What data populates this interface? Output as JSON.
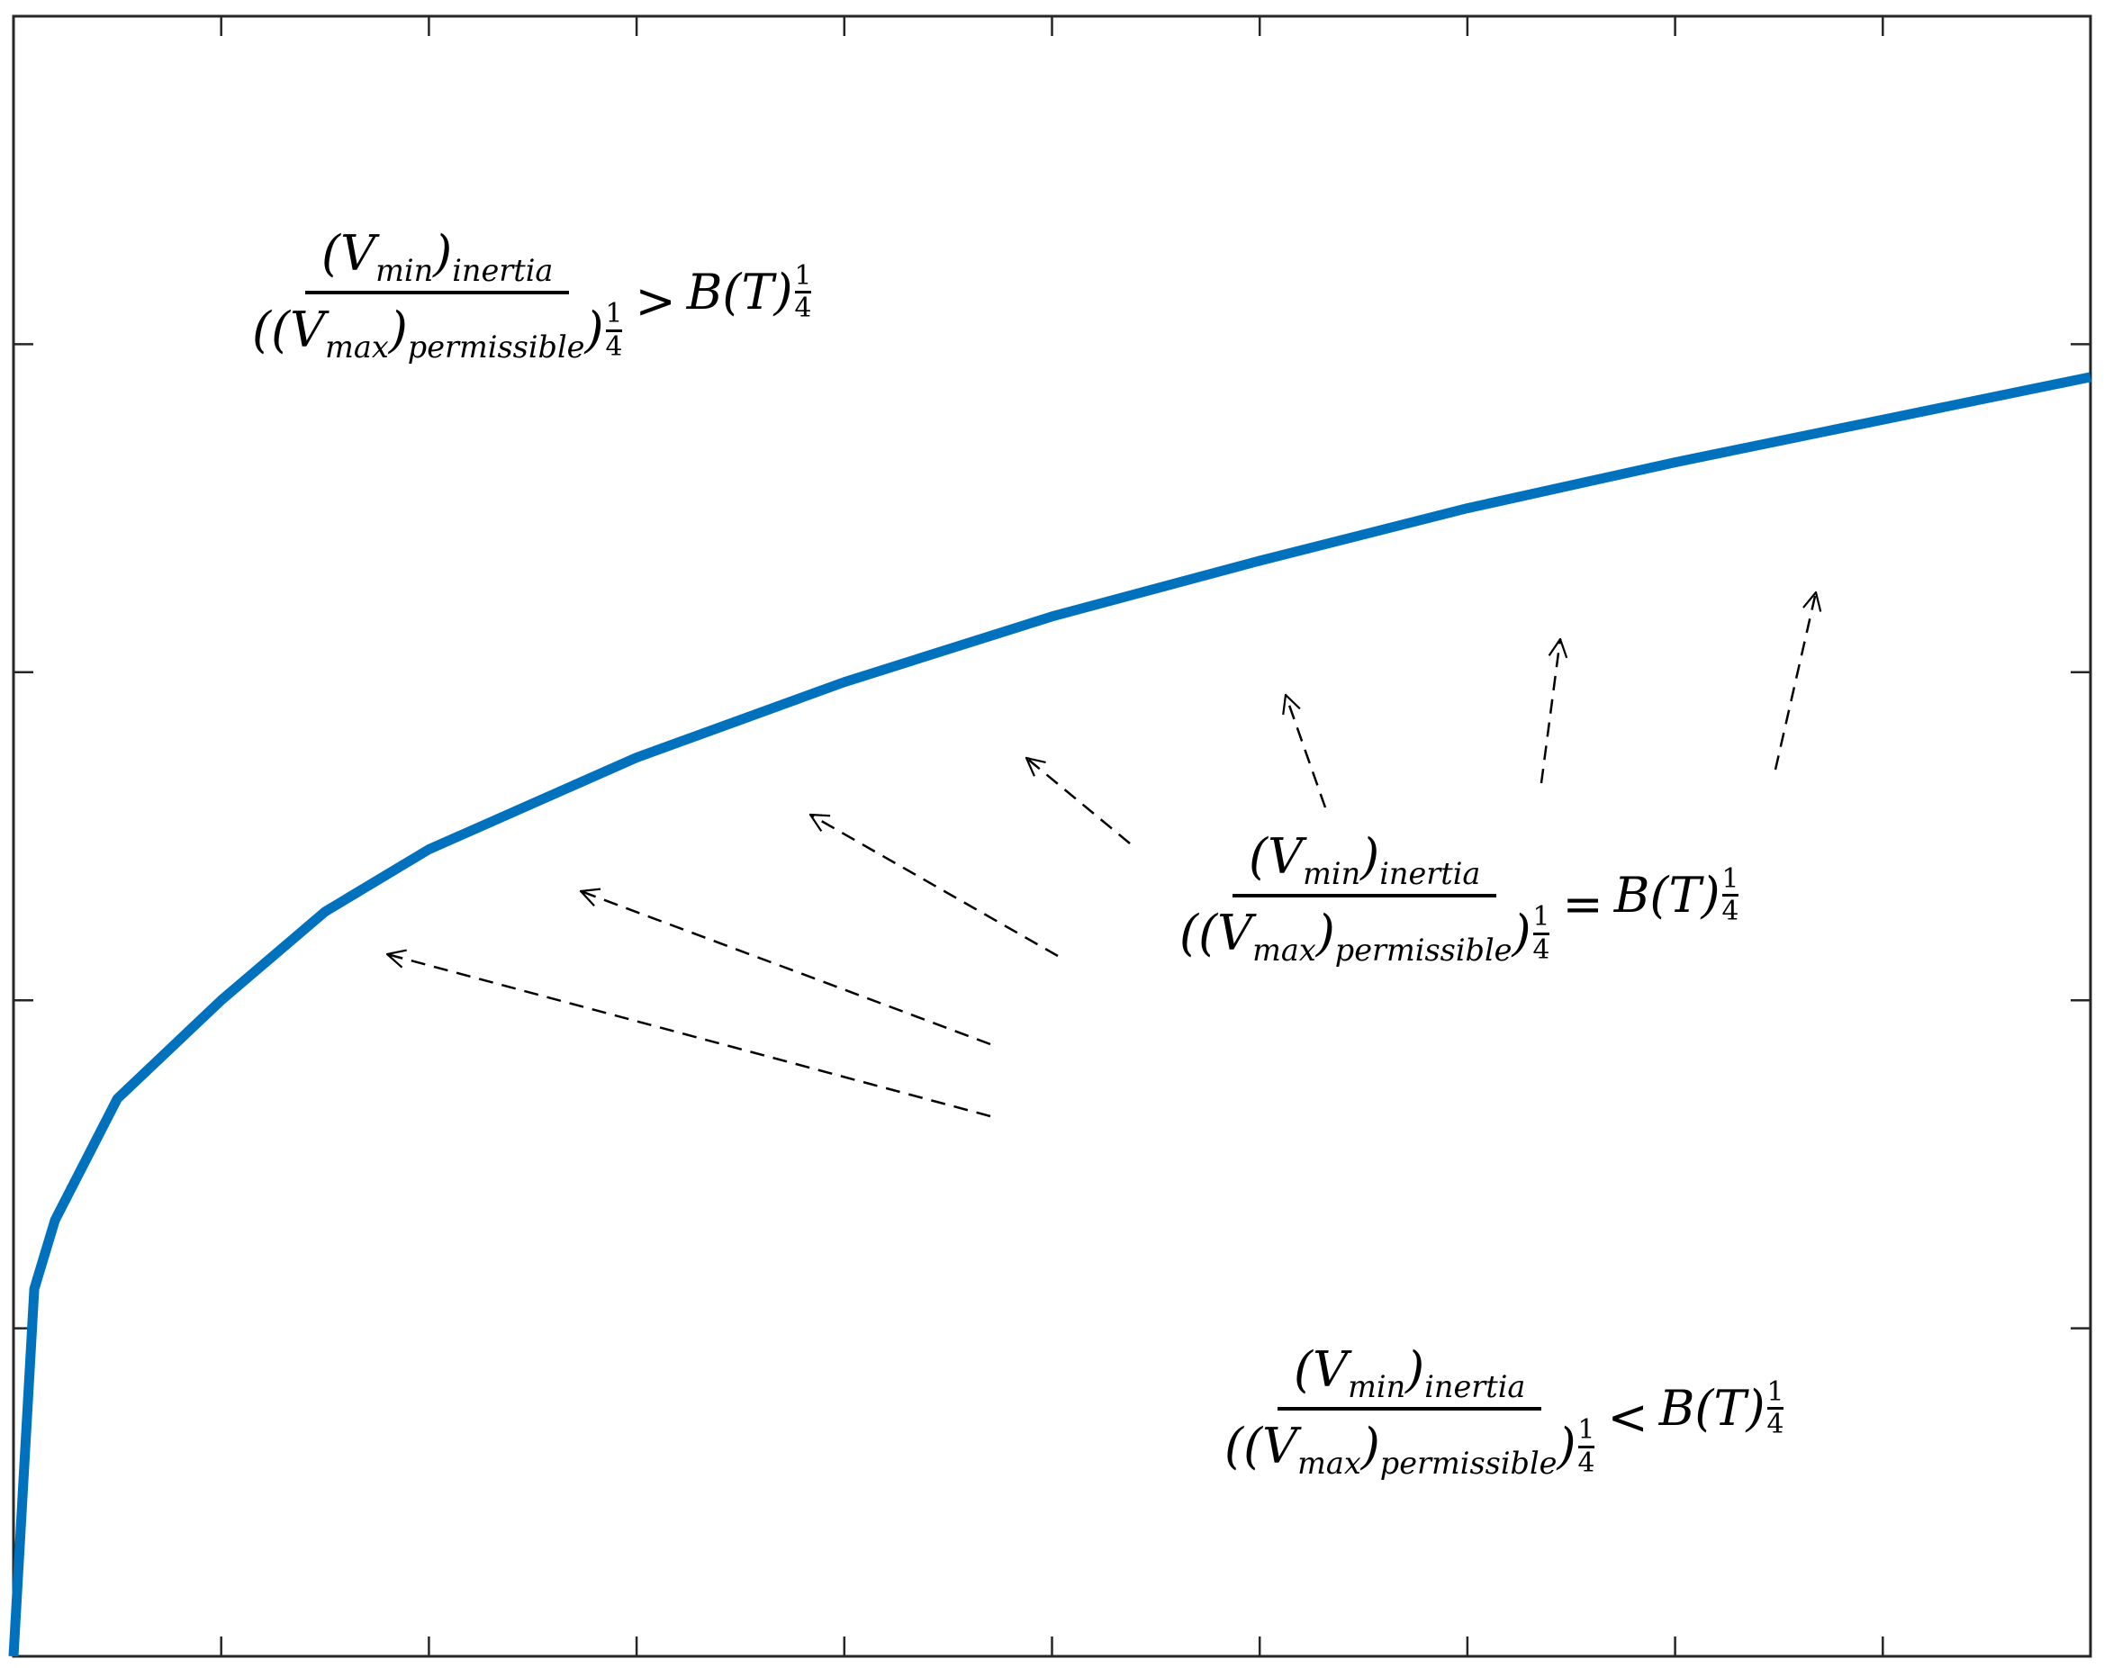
{
  "chart_data": {
    "type": "line",
    "title": "",
    "xlabel": "",
    "ylabel": "",
    "xticks": [
      "",
      "",
      "",
      "",
      "",
      "",
      "",
      "",
      "",
      ""
    ],
    "yticks": [
      "",
      "",
      "",
      "",
      ""
    ],
    "xlim": [
      0,
      10
    ],
    "ylim": [
      0,
      5
    ],
    "grid": false,
    "series": [
      {
        "color": "#0072BD",
        "x": [
          0.0,
          0.1,
          0.2,
          0.5,
          1.0,
          1.5,
          2.0,
          3.0,
          4.0,
          5.0,
          6.0,
          7.0,
          8.0,
          9.0,
          10.0
        ],
        "y": [
          0.0,
          1.12,
          1.33,
          1.7,
          2.0,
          2.27,
          2.46,
          2.74,
          2.97,
          3.17,
          3.34,
          3.5,
          3.64,
          3.77,
          3.9
        ]
      }
    ],
    "annotations": {
      "upper": {
        "num_base": "(V",
        "num_sub1": "min",
        "num_mid": ")",
        "num_sub2": "inertia",
        "den_open": "((V",
        "den_sub1": "max",
        "den_mid": ")",
        "den_sub2": "permissible",
        "den_close": ")",
        "exp_num": "1",
        "exp_den": "4",
        "relation": ">",
        "rhs": "B(T)",
        "rhs_exp_num": "1",
        "rhs_exp_den": "4"
      },
      "middle": {
        "num_base": "(V",
        "num_sub1": "min",
        "num_mid": ")",
        "num_sub2": "inertia",
        "den_open": "((V",
        "den_sub1": "max",
        "den_mid": ")",
        "den_sub2": "permissible",
        "den_close": ")",
        "exp_num": "1",
        "exp_den": "4",
        "relation": "=",
        "rhs": "B(T)",
        "rhs_exp_num": "1",
        "rhs_exp_den": "4"
      },
      "lower": {
        "num_base": "(V",
        "num_sub1": "min",
        "num_mid": ")",
        "num_sub2": "inertia",
        "den_open": "((V",
        "den_sub1": "max",
        "den_mid": ")",
        "den_sub2": "permissible",
        "den_close": ")",
        "exp_num": "1",
        "exp_den": "4",
        "relation": "<",
        "rhs": "B(T)",
        "rhs_exp_num": "1",
        "rhs_exp_den": "4"
      }
    }
  }
}
